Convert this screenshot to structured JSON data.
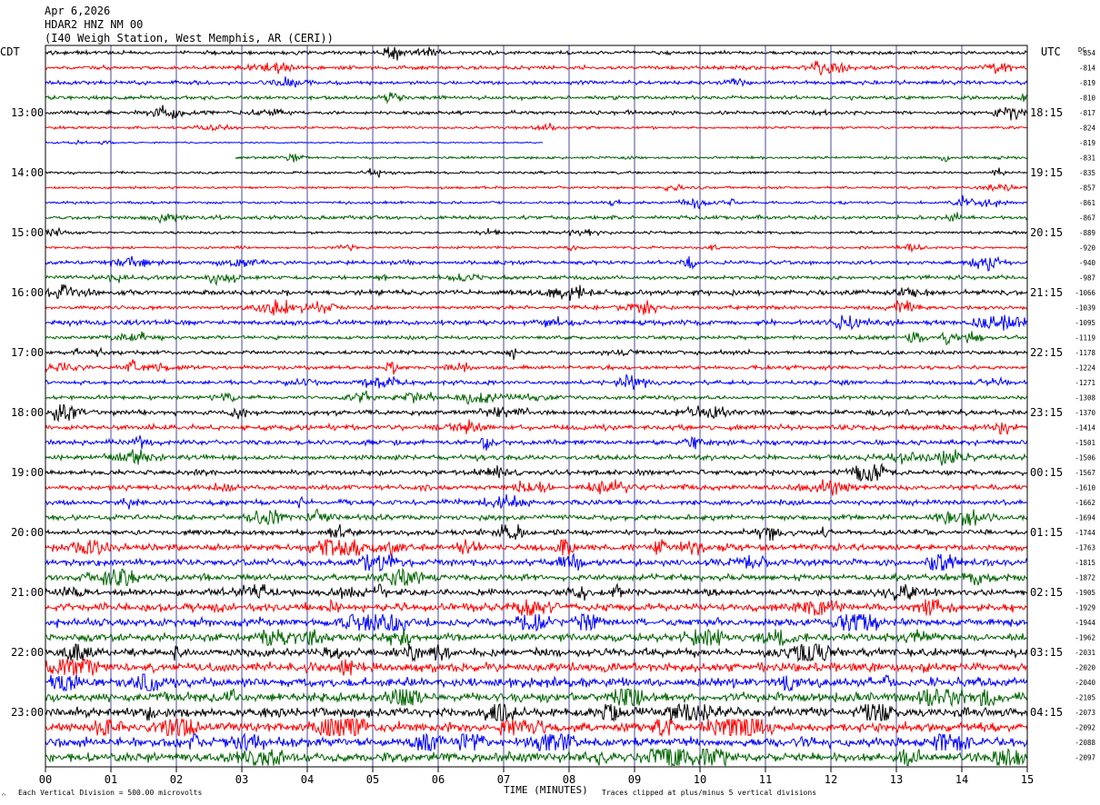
{
  "header": {
    "date": "Apr 6,2026",
    "station": "HDAR2 HNZ NM 00",
    "location": "(I40 Weigh Station, West Memphis, AR (CERI))"
  },
  "chart_data": {
    "type": "line",
    "description_type": "helicorder",
    "left_tz": "CDT",
    "right_tz": "UTC",
    "dc_label": "DC",
    "xlabel": "TIME (MINUTES)",
    "xlim": [
      0,
      15
    ],
    "x_ticks": [
      "00",
      "01",
      "02",
      "03",
      "04",
      "05",
      "06",
      "07",
      "08",
      "09",
      "10",
      "11",
      "12",
      "13",
      "14",
      "15"
    ],
    "left_hour_labels": [
      "13:00",
      "14:00",
      "15:00",
      "16:00",
      "17:00",
      "18:00",
      "19:00",
      "20:00",
      "21:00",
      "22:00",
      "23:00"
    ],
    "right_hour_labels": [
      "18:15",
      "19:15",
      "20:15",
      "21:15",
      "22:15",
      "23:15",
      "00:15",
      "01:15",
      "02:15",
      "03:15",
      "04:15"
    ],
    "hour_label_first_row": 4,
    "rows_per_hour": 4,
    "row_colors": [
      "#000000",
      "#ff0000",
      "#0000ff",
      "#006400"
    ],
    "dc_offsets": [
      "-854",
      "-814",
      "-819",
      "-810",
      "-817",
      "-824",
      "-819",
      "-831",
      "-835",
      "-857",
      "-861",
      "-867",
      "-889",
      "-920",
      "-940",
      "-987",
      "-1066",
      "-1039",
      "-1095",
      "-1119",
      "-1178",
      "-1224",
      "-1271",
      "-1308",
      "-1370",
      "-1414",
      "-1501",
      "-1506",
      "-1567",
      "-1610",
      "-1662",
      "-1694",
      "-1744",
      "-1763",
      "-1815",
      "-1872",
      "-1905",
      "-1929",
      "-1944",
      "-1962",
      "-2031",
      "-2020",
      "-2040",
      "-2105",
      "-2073",
      "-2092",
      "-2088",
      "-2097"
    ],
    "row_amplitudes": [
      3,
      3,
      3,
      3,
      3,
      2,
      1,
      2,
      2,
      2,
      2,
      3,
      2,
      2,
      3,
      3,
      4,
      3,
      4,
      3,
      3,
      3,
      3,
      3,
      4,
      4,
      4,
      4,
      4,
      4,
      4,
      4,
      4,
      5,
      5,
      5,
      5,
      6,
      6,
      6,
      6,
      7,
      7,
      7,
      7,
      7,
      7,
      7
    ],
    "gaps": [
      {
        "row": 6,
        "from_min": 7.6,
        "to_min": 15
      },
      {
        "row": 7,
        "from_min": 0,
        "to_min": 2.9
      }
    ]
  },
  "footer": {
    "scale_text": "Each Vertical Division =  500.00 microvolts",
    "clip_text": "Traces clipped at plus/minus 5 vertical divisions",
    "corner_glyph": "⌒"
  },
  "colors": {
    "background": "#ffffff",
    "grid": "#4a4a9a",
    "frame": "#000000",
    "text": "#000000"
  }
}
